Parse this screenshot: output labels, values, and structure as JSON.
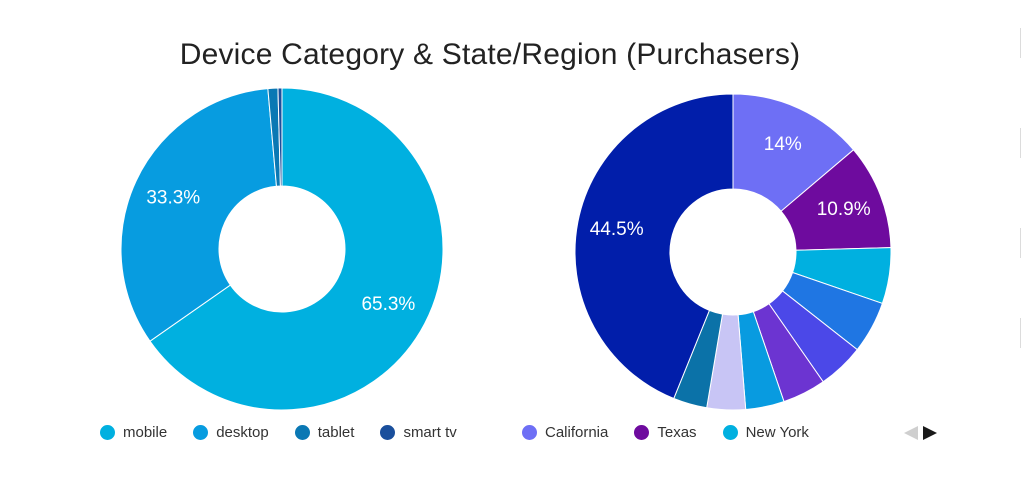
{
  "title": "Device Category & State/Region (Purchasers)",
  "chart_data": [
    {
      "type": "pie",
      "donut": true,
      "title": "",
      "series": [
        {
          "label": "mobile",
          "value": 65.3,
          "color": "#00b0e0",
          "show_label": true
        },
        {
          "label": "desktop",
          "value": 33.3,
          "color": "#079ce0",
          "show_label": true
        },
        {
          "label": "tablet",
          "value": 1.0,
          "color": "#0a78b4",
          "show_label": false
        },
        {
          "label": "smart tv",
          "value": 0.4,
          "color": "#1a4f9c",
          "show_label": false
        }
      ]
    },
    {
      "type": "pie",
      "donut": true,
      "title": "",
      "series": [
        {
          "label": "California",
          "value": 14.0,
          "color": "#6e6ff5",
          "show_label": true
        },
        {
          "label": "Texas",
          "value": 10.9,
          "color": "#6e0b9e",
          "show_label": true
        },
        {
          "label": "New York",
          "value": 5.8,
          "color": "#00b0e0",
          "show_label": false
        },
        {
          "label": "",
          "value": 5.4,
          "color": "#1f76e3",
          "show_label": false
        },
        {
          "label": "",
          "value": 4.8,
          "color": "#4b48e8",
          "show_label": false
        },
        {
          "label": "",
          "value": 4.5,
          "color": "#6c34d1",
          "show_label": false
        },
        {
          "label": "",
          "value": 4.0,
          "color": "#089be0",
          "show_label": false
        },
        {
          "label": "",
          "value": 4.0,
          "color": "#c8c5f5",
          "show_label": false
        },
        {
          "label": "",
          "value": 3.5,
          "color": "#0b72a8",
          "show_label": false
        },
        {
          "label": "",
          "value": 44.5,
          "color": "#011eaa",
          "show_label": true
        }
      ]
    }
  ],
  "legend_left": [
    {
      "label": "mobile",
      "color": "#00b0e0"
    },
    {
      "label": "desktop",
      "color": "#079ce0"
    },
    {
      "label": "tablet",
      "color": "#0a78b4"
    },
    {
      "label": "smart tv",
      "color": "#1a4f9c"
    }
  ],
  "legend_right": [
    {
      "label": "California",
      "color": "#6e6ff5"
    },
    {
      "label": "Texas",
      "color": "#6e0b9e"
    },
    {
      "label": "New York",
      "color": "#00b0e0"
    }
  ],
  "pager": {
    "prev_icon": "triangle-left-icon",
    "next_icon": "triangle-right-icon"
  }
}
